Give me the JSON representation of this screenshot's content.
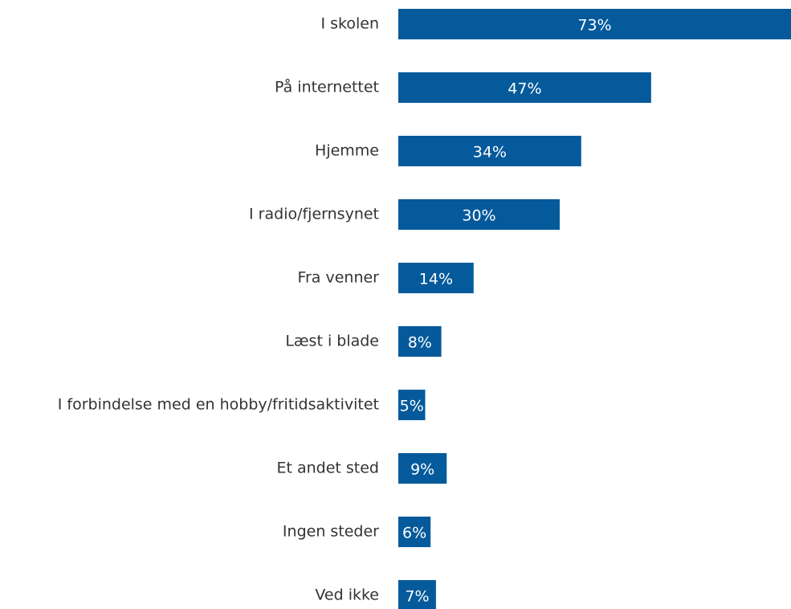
{
  "chart_data": {
    "type": "bar",
    "orientation": "horizontal",
    "categories": [
      "I skolen",
      "På internettet",
      "Hjemme",
      "I radio/fjernsynet",
      "Fra venner",
      "Læst i blade",
      "I forbindelse med en hobby/fritidsaktivitet",
      "Et andet sted",
      "Ingen steder",
      "Ved ikke"
    ],
    "values": [
      73,
      47,
      34,
      30,
      14,
      8,
      5,
      9,
      6,
      7
    ],
    "value_labels": [
      "73%",
      "47%",
      "34%",
      "30%",
      "14%",
      "8%",
      "5%",
      "9%",
      "6%",
      "7%"
    ],
    "color": "#055a9b"
  }
}
